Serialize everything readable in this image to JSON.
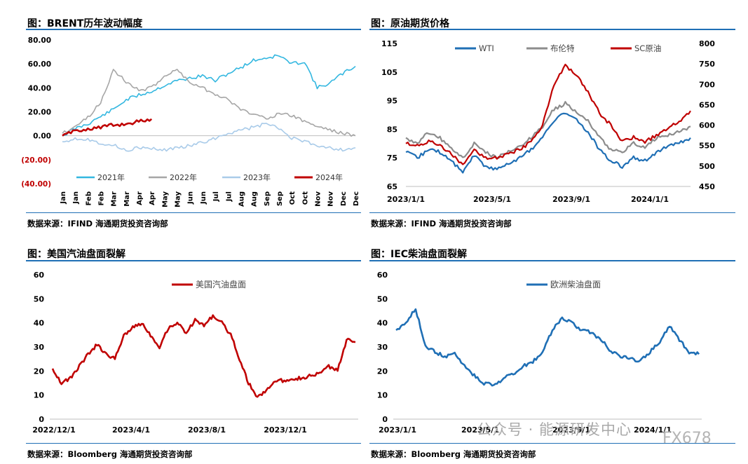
{
  "panels": [
    {
      "title": "图：BRENT历年波动幅度",
      "source": "数据来源：IFIND   海通期货投资咨询部"
    },
    {
      "title": "图：原油期货价格",
      "source": "数据来源：IFIND   海通期货投资咨询部"
    },
    {
      "title": "图：美国汽油盘面裂解",
      "source": "数据来源：Bloomberg   海通期货投资咨询部"
    },
    {
      "title": "图：IEC柴油盘面裂解",
      "source": "数据来源：Bloomberg   海通期货投资咨询部"
    }
  ],
  "watermark": {
    "text": "公众号 · 能源研发中心",
    "id": "FX678"
  },
  "chart_data": [
    {
      "type": "line",
      "title": "图：BRENT历年波动幅度",
      "x_ticks": [
        "Jan",
        "Jan",
        "Feb",
        "Feb",
        "Mar",
        "Mar",
        "Apr",
        "Apr",
        "May",
        "May",
        "Jun",
        "Jun",
        "Jul",
        "Jul",
        "Aug",
        "Aug",
        "Sep",
        "Sep",
        "Oct",
        "Oct",
        "Nov",
        "Nov",
        "Dec",
        "Dec"
      ],
      "y_ticks": [
        "80.00",
        "60.00",
        "40.00",
        "20.00",
        "0.00",
        "(20.00)",
        "(40.00)"
      ],
      "ylim": [
        -40,
        80
      ],
      "legend": "bottom",
      "series": [
        {
          "name": "2021年",
          "color": "#33b7e0",
          "values": [
            0,
            6,
            10,
            16,
            22,
            30,
            34,
            37,
            42,
            46,
            48,
            50,
            46,
            52,
            57,
            63,
            65,
            67,
            60,
            62,
            40,
            44,
            52,
            58
          ]
        },
        {
          "name": "2022年",
          "color": "#a6a6a6",
          "values": [
            2,
            8,
            15,
            28,
            55,
            45,
            38,
            40,
            50,
            55,
            45,
            40,
            35,
            30,
            22,
            18,
            15,
            18,
            17,
            12,
            8,
            5,
            2,
            0
          ]
        },
        {
          "name": "2023年",
          "color": "#a9cbe9",
          "values": [
            -5,
            -2,
            -3,
            -6,
            -8,
            -12,
            -10,
            -11,
            -12,
            -10,
            -8,
            -6,
            -2,
            2,
            5,
            7,
            10,
            6,
            -2,
            -5,
            -8,
            -10,
            -12,
            -10
          ]
        },
        {
          "name": "2024年",
          "color": "#c00000",
          "values": [
            0,
            4,
            6,
            7,
            9,
            10,
            12,
            14
          ]
        }
      ]
    },
    {
      "type": "line",
      "title": "图：原油期货价格",
      "x_ticks": [
        "2023/1/1",
        "2023/5/1",
        "2023/9/1",
        "2024/1/1"
      ],
      "y_ticks_left": [
        "115",
        "105",
        "95",
        "85",
        "75",
        "65"
      ],
      "y_ticks_right": [
        "800",
        "750",
        "700",
        "650",
        "600",
        "550",
        "500",
        "450"
      ],
      "ylim_left": [
        65,
        115
      ],
      "ylim_right": [
        450,
        800
      ],
      "legend": "top",
      "series": [
        {
          "name": "WTI",
          "axis": "left",
          "color": "#1f6fb5",
          "values": [
            77,
            75,
            78,
            77,
            74,
            70,
            76,
            72,
            71,
            73,
            75,
            78,
            82,
            88,
            91,
            88,
            84,
            78,
            74,
            72,
            75,
            74,
            77,
            79,
            80,
            82
          ]
        },
        {
          "name": "布伦特",
          "axis": "left",
          "color": "#8c8c8c",
          "values": [
            82,
            80,
            84,
            82,
            78,
            75,
            80,
            77,
            75,
            77,
            79,
            82,
            86,
            92,
            94,
            91,
            88,
            82,
            78,
            77,
            80,
            79,
            82,
            83,
            84,
            86
          ]
        },
        {
          "name": "SC原油",
          "axis": "right",
          "color": "#c00000",
          "values": [
            555,
            550,
            560,
            550,
            530,
            500,
            540,
            520,
            520,
            530,
            540,
            560,
            600,
            700,
            745,
            720,
            680,
            630,
            600,
            560,
            570,
            560,
            575,
            590,
            610,
            635
          ]
        }
      ]
    },
    {
      "type": "line",
      "title": "图：美国汽油盘面裂解",
      "x_ticks": [
        "2022/12/1",
        "2023/4/1",
        "2023/8/1",
        "2023/12/1"
      ],
      "y_ticks": [
        "60",
        "50",
        "40",
        "30",
        "20",
        "10",
        "0"
      ],
      "ylim": [
        0,
        60
      ],
      "legend": "top",
      "series": [
        {
          "name": "美国汽油盘面",
          "color": "#c00000",
          "values": [
            21,
            15,
            17,
            22,
            27,
            31,
            27,
            25,
            35,
            38,
            40,
            35,
            30,
            38,
            40,
            36,
            41,
            39,
            43,
            40,
            35,
            25,
            15,
            9,
            12,
            16,
            16,
            17,
            17,
            18,
            19,
            22,
            20,
            33,
            32
          ]
        }
      ]
    },
    {
      "type": "line",
      "title": "图：IEC柴油盘面裂解",
      "x_ticks": [
        "2023/1/1",
        "2023/5/1",
        "2023/9/1",
        "2024/1/1"
      ],
      "y_ticks": [
        "60",
        "50",
        "40",
        "30",
        "20",
        "10",
        "0"
      ],
      "ylim": [
        0,
        60
      ],
      "legend": "top",
      "series": [
        {
          "name": "欧洲柴油盘面",
          "color": "#1f6fb5",
          "values": [
            37,
            40,
            46,
            30,
            28,
            26,
            27,
            22,
            18,
            15,
            14,
            17,
            19,
            22,
            24,
            28,
            37,
            42,
            40,
            37,
            36,
            33,
            28,
            26,
            25,
            24,
            28,
            32,
            39,
            33,
            28,
            27
          ]
        }
      ]
    }
  ]
}
